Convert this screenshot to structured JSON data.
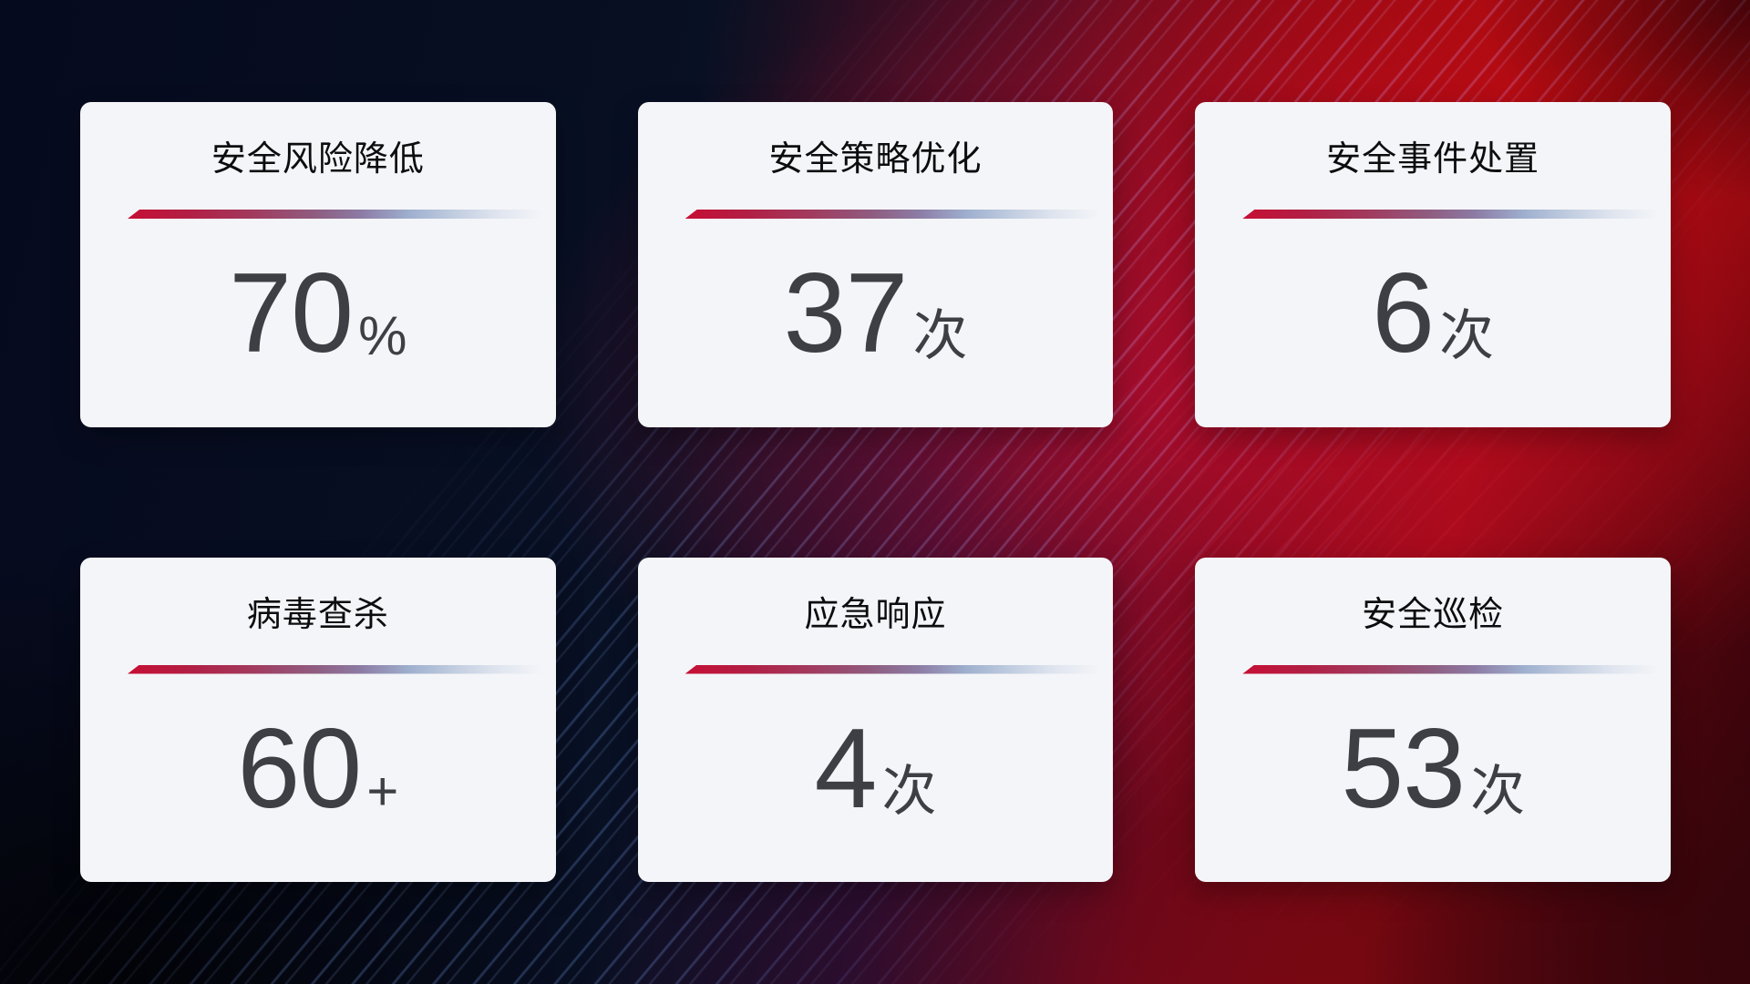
{
  "cards": [
    {
      "title": "安全风险降低",
      "value": "70",
      "suffix": "%"
    },
    {
      "title": "安全策略优化",
      "value": "37",
      "suffix": "次"
    },
    {
      "title": "安全事件处置",
      "value": "6",
      "suffix": "次"
    },
    {
      "title": "病毒查杀",
      "value": "60",
      "suffix": "+"
    },
    {
      "title": "应急响应",
      "value": "4",
      "suffix": "次"
    },
    {
      "title": "安全巡检",
      "value": "53",
      "suffix": "次"
    }
  ],
  "theme": {
    "card_background": "#f4f5f8",
    "title_color": "#0d0d0f",
    "value_color": "#3d3f44",
    "divider_gradient_start": "#c60f35",
    "divider_gradient_middle": "#8c7ba4",
    "divider_gradient_end": "#dde3ee",
    "background_navy": "#060a1e",
    "background_red": "#b00c13",
    "background_crimson_glow": "#cb0e38",
    "background_maroon": "#38040a",
    "streak_blue": "#78a0f5"
  }
}
